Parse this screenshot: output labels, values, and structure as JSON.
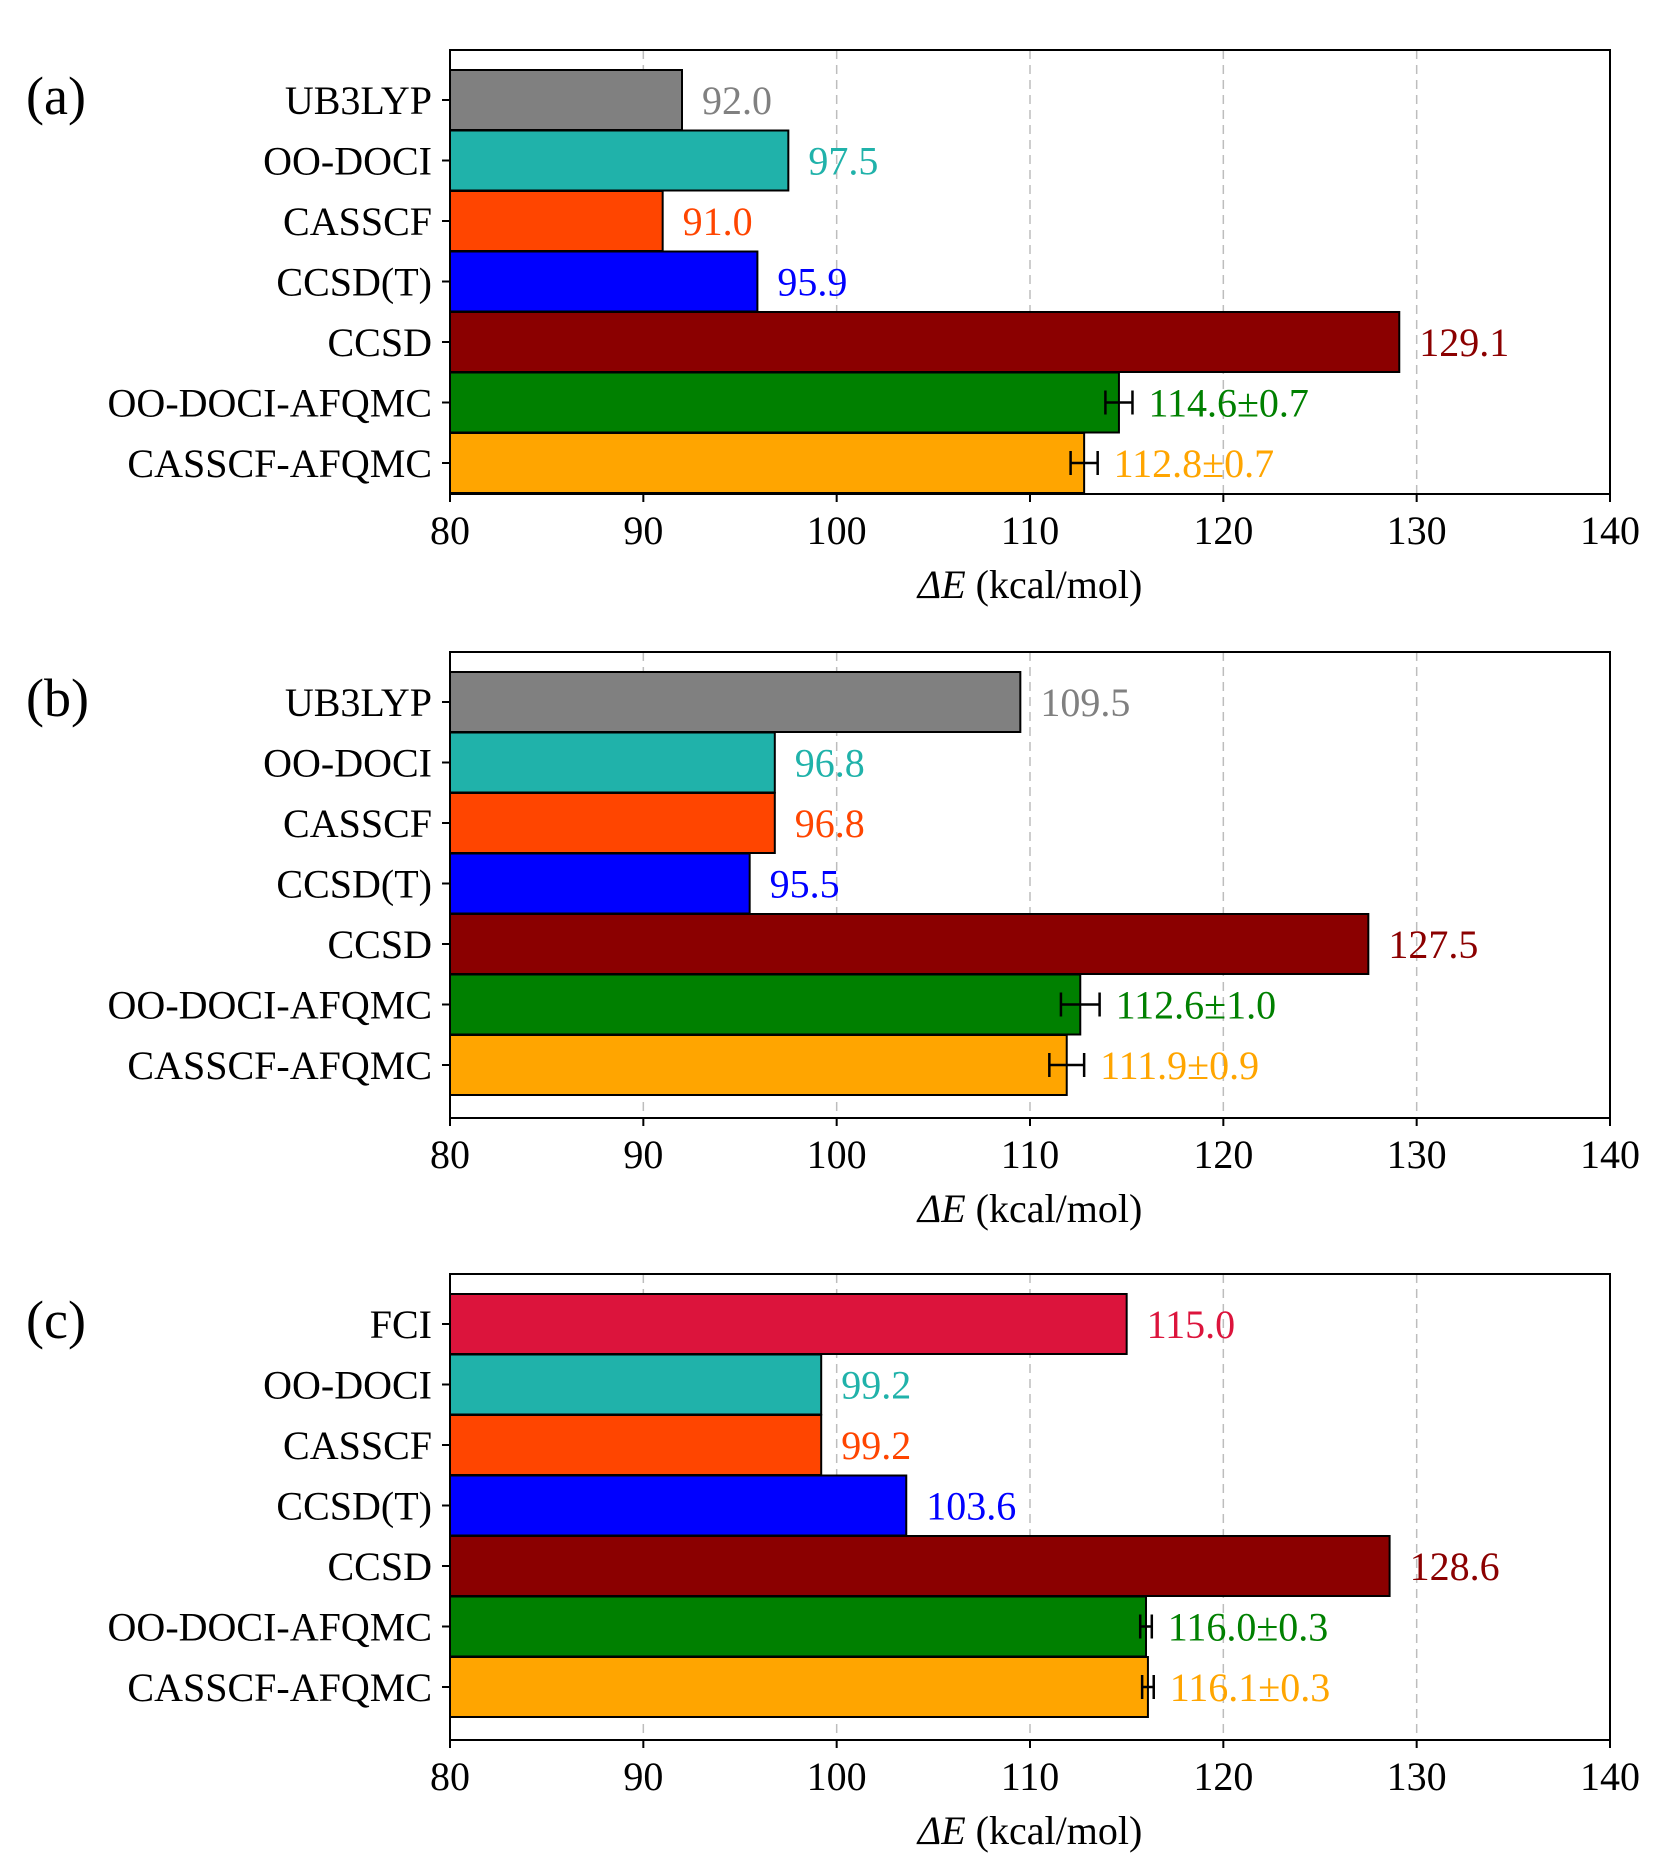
{
  "chart_data": [
    {
      "type": "bar",
      "orientation": "horizontal",
      "panel_label": "(a)",
      "categories": [
        "UB3LYP",
        "OO-DOCI",
        "CASSCF",
        "CCSD(T)",
        "CCSD",
        "OO-DOCI-AFQMC",
        "CASSCF-AFQMC"
      ],
      "values": [
        92.0,
        97.5,
        91.0,
        95.9,
        129.1,
        114.6,
        112.8
      ],
      "errors": [
        null,
        null,
        null,
        null,
        null,
        0.7,
        0.7
      ],
      "data_labels": [
        "92.0",
        "97.5",
        "91.0",
        "95.9",
        "129.1",
        "114.6±0.7",
        "112.8±0.7"
      ],
      "colors": [
        "#808080",
        "#20b2aa",
        "#ff4500",
        "#0000ff",
        "#8b0000",
        "#008000",
        "#ffa500"
      ],
      "xlim": [
        80,
        140
      ],
      "xticks": [
        "80",
        "90",
        "100",
        "110",
        "120",
        "130",
        "140"
      ],
      "xlabel_symbol": "ΔE",
      "xlabel_unit": "(kcal/mol)",
      "grid": "x-dashed"
    },
    {
      "type": "bar",
      "orientation": "horizontal",
      "panel_label": "(b)",
      "categories": [
        "UB3LYP",
        "OO-DOCI",
        "CASSCF",
        "CCSD(T)",
        "CCSD",
        "OO-DOCI-AFQMC",
        "CASSCF-AFQMC"
      ],
      "values": [
        109.5,
        96.8,
        96.8,
        95.5,
        127.5,
        112.6,
        111.9
      ],
      "errors": [
        null,
        null,
        null,
        null,
        null,
        1.0,
        0.9
      ],
      "data_labels": [
        "109.5",
        "96.8",
        "96.8",
        "95.5",
        "127.5",
        "112.6±1.0",
        "111.9±0.9"
      ],
      "colors": [
        "#808080",
        "#20b2aa",
        "#ff4500",
        "#0000ff",
        "#8b0000",
        "#008000",
        "#ffa500"
      ],
      "xlim": [
        80,
        140
      ],
      "xticks": [
        "80",
        "90",
        "100",
        "110",
        "120",
        "130",
        "140"
      ],
      "xlabel_symbol": "ΔE",
      "xlabel_unit": "(kcal/mol)",
      "grid": "x-dashed"
    },
    {
      "type": "bar",
      "orientation": "horizontal",
      "panel_label": "(c)",
      "categories": [
        "FCI",
        "OO-DOCI",
        "CASSCF",
        "CCSD(T)",
        "CCSD",
        "OO-DOCI-AFQMC",
        "CASSCF-AFQMC"
      ],
      "values": [
        115.0,
        99.2,
        99.2,
        103.6,
        128.6,
        116.0,
        116.1
      ],
      "errors": [
        null,
        null,
        null,
        null,
        null,
        0.3,
        0.3
      ],
      "data_labels": [
        "115.0",
        "99.2",
        "99.2",
        "103.6",
        "128.6",
        "116.0±0.3",
        "116.1±0.3"
      ],
      "colors": [
        "#dc143c",
        "#20b2aa",
        "#ff4500",
        "#0000ff",
        "#8b0000",
        "#008000",
        "#ffa500"
      ],
      "xlim": [
        80,
        140
      ],
      "xticks": [
        "80",
        "90",
        "100",
        "110",
        "120",
        "130",
        "140"
      ],
      "xlabel_symbol": "ΔE",
      "xlabel_unit": "(kcal/mol)",
      "grid": "x-dashed"
    }
  ]
}
